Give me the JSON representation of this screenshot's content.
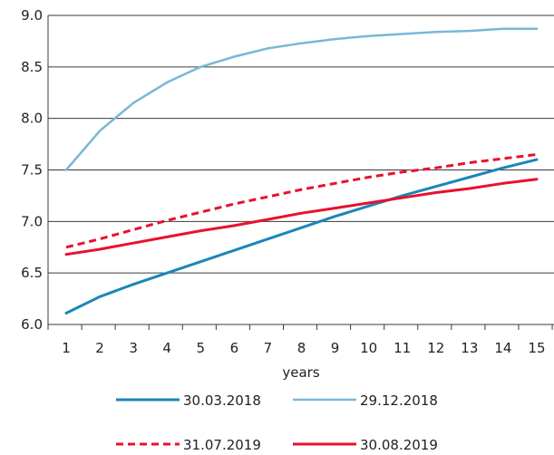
{
  "chart_data": {
    "type": "line",
    "title": "",
    "xlabel": "years",
    "ylabel": "",
    "x": [
      1,
      2,
      3,
      4,
      5,
      6,
      7,
      8,
      9,
      10,
      11,
      12,
      13,
      14,
      15
    ],
    "x_tick_labels": [
      "1",
      "2",
      "3",
      "4",
      "5",
      "6",
      "7",
      "8",
      "9",
      "10",
      "11",
      "12",
      "13",
      "14",
      "15"
    ],
    "ylim": [
      6.0,
      9.0
    ],
    "y_ticks": [
      6.0,
      6.5,
      7.0,
      7.5,
      8.0,
      8.5,
      9.0
    ],
    "y_tick_labels": [
      "6.0",
      "6.5",
      "7.0",
      "7.5",
      "8.0",
      "8.5",
      "9.0"
    ],
    "grid": "horizontal",
    "legend_position": "bottom",
    "series": [
      {
        "name": "30.03.2018",
        "color": "#1a86b8",
        "dashed": false,
        "values": [
          6.11,
          6.27,
          6.39,
          6.5,
          6.61,
          6.72,
          6.83,
          6.94,
          7.05,
          7.15,
          7.25,
          7.34,
          7.43,
          7.52,
          7.6
        ]
      },
      {
        "name": "29.12.2018",
        "color": "#7ab7d8",
        "dashed": false,
        "values": [
          7.5,
          7.88,
          8.15,
          8.35,
          8.5,
          8.6,
          8.68,
          8.73,
          8.77,
          8.8,
          8.82,
          8.84,
          8.85,
          8.87,
          8.87
        ]
      },
      {
        "name": "31.07.2019",
        "color": "#e8112d",
        "dashed": true,
        "values": [
          6.75,
          6.83,
          6.92,
          7.01,
          7.09,
          7.17,
          7.24,
          7.31,
          7.37,
          7.43,
          7.48,
          7.52,
          7.57,
          7.61,
          7.65
        ]
      },
      {
        "name": "30.08.2019",
        "color": "#e8112d",
        "dashed": false,
        "values": [
          6.68,
          6.73,
          6.79,
          6.85,
          6.91,
          6.96,
          7.02,
          7.08,
          7.13,
          7.18,
          7.23,
          7.28,
          7.32,
          7.37,
          7.41
        ]
      }
    ]
  }
}
